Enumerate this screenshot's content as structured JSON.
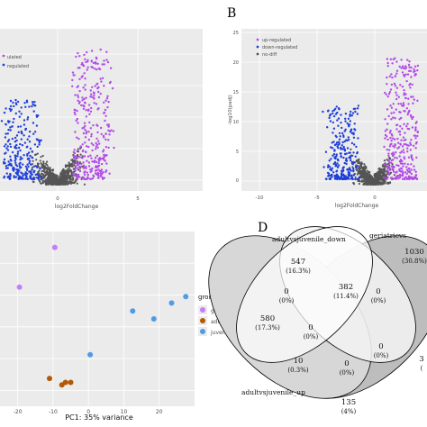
{
  "panel_labels": {
    "b": "B",
    "d": "D"
  },
  "colors": {
    "up": "#b24be8",
    "down": "#1f3fd8",
    "ns": "#555555",
    "geriatric": "#c77cff",
    "adult": "#b35806",
    "juvenile": "#4f9be6"
  },
  "chart_data": [
    {
      "id": "volcano-a",
      "type": "scatter",
      "xlabel": "log2FoldChange",
      "x_ticks": [
        0,
        5
      ],
      "legend": [
        "up-regulated",
        "down-regulated"
      ],
      "legend_visible_text": [
        "ulated",
        "regulated"
      ],
      "points_note": "dense cloud; up in purple, down in blue, not-significant grey"
    },
    {
      "id": "volcano-b",
      "type": "scatter",
      "xlabel": "log2FoldChange",
      "ylabel": "-log10(padj)",
      "x_ticks": [
        -10,
        -5,
        0,
        5
      ],
      "y_ticks": [
        0,
        5,
        10,
        15,
        20,
        25
      ],
      "legend": [
        "up-regulated",
        "down-regulated",
        "no-diff"
      ]
    },
    {
      "id": "pca-c",
      "type": "scatter",
      "xlabel": "PC1: 35% variance",
      "x_ticks": [
        -20,
        -10,
        0,
        10,
        20
      ],
      "xlim": [
        -25,
        30
      ],
      "ylim": [
        -10,
        12
      ],
      "legend_title": "group",
      "series": [
        {
          "name": "geriatric",
          "points": [
            [
              -9.5,
              10.0
            ],
            [
              -19.5,
              5.0
            ]
          ]
        },
        {
          "name": "adult",
          "points": [
            [
              -11.0,
              -6.5
            ],
            [
              -7.5,
              -7.3
            ],
            [
              -6.5,
              -7.0
            ],
            [
              -5.0,
              -7.0
            ]
          ]
        },
        {
          "name": "juvenile",
          "points": [
            [
              0.5,
              -3.5
            ],
            [
              12.5,
              2.0
            ],
            [
              18.5,
              1.0
            ],
            [
              23.5,
              3.0
            ],
            [
              27.5,
              3.8
            ]
          ]
        }
      ]
    },
    {
      "id": "venn-d",
      "type": "venn",
      "sets": [
        "adultvsjuvenile_down",
        "geriatricvs",
        "adultvsjuvenile_up"
      ],
      "regions": [
        {
          "count": "547",
          "pct": "(16.3%)"
        },
        {
          "count": "1030",
          "pct": "(30.8%)"
        },
        {
          "count": "382",
          "pct": "(11.4%)"
        },
        {
          "count": "580",
          "pct": "(17.3%)"
        },
        {
          "count": "0",
          "pct": "(0%)"
        },
        {
          "count": "0",
          "pct": "(0%)"
        },
        {
          "count": "0",
          "pct": "(0%)"
        },
        {
          "count": "10",
          "pct": "(0.3%)"
        },
        {
          "count": "0",
          "pct": "(0%)"
        },
        {
          "count": "0",
          "pct": "(0%)"
        },
        {
          "count": "3",
          "pct": "("
        },
        {
          "count": "135",
          "pct": "(4%)"
        }
      ]
    }
  ]
}
